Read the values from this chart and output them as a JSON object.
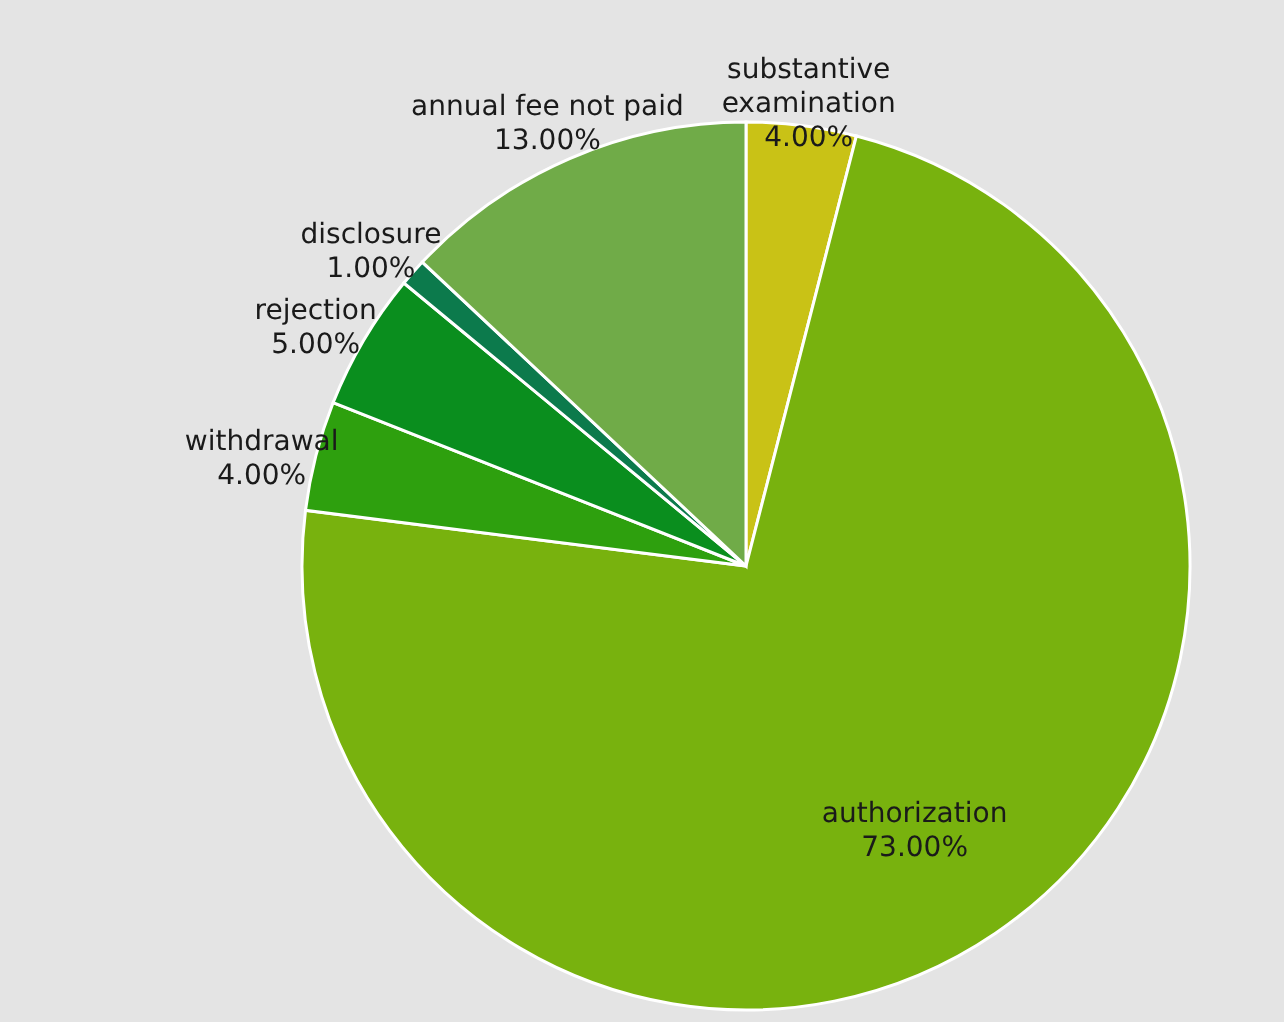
{
  "chart_data": {
    "type": "pie",
    "categories": [
      "substantive examination",
      "authorization",
      "withdrawal",
      "rejection",
      "disclosure",
      "annual fee not paid"
    ],
    "values": [
      4,
      73,
      4,
      5,
      1,
      13
    ],
    "colors": [
      "#c9c216",
      "#78b20e",
      "#2ea00e",
      "#0a8e1e",
      "#0c7a4c",
      "#70ab48"
    ],
    "value_labels": [
      "4.00%",
      "73.00%",
      "4.00%",
      "5.00%",
      "1.00%",
      "13.00%"
    ]
  }
}
